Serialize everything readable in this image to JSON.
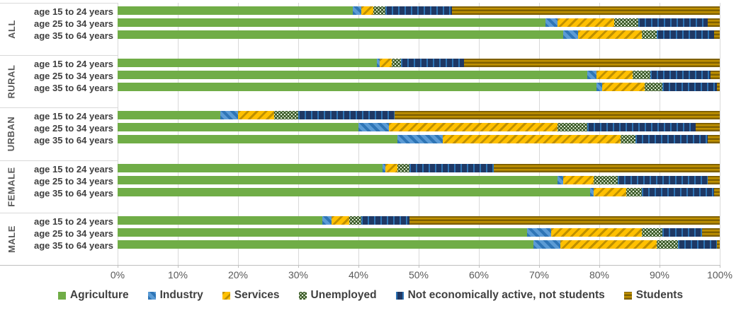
{
  "chart_data": {
    "type": "bar",
    "orientation": "horizontal",
    "stacked": true,
    "unit": "percent",
    "xlim": [
      0,
      100
    ],
    "x_ticks": [
      "0%",
      "10%",
      "20%",
      "30%",
      "40%",
      "50%",
      "60%",
      "70%",
      "80%",
      "90%",
      "100%"
    ],
    "grid": true,
    "legend_position": "bottom",
    "series": [
      {
        "name": "Agriculture",
        "fill": "#70AD47",
        "pattern": "solid"
      },
      {
        "name": "Industry",
        "fill": "#5B9BD5",
        "stripe": "#2E75B6",
        "pattern": "diagonal-down"
      },
      {
        "name": "Services",
        "fill": "#FFC000",
        "stripe": "#BF9000",
        "pattern": "diagonal-up"
      },
      {
        "name": "Unemployed",
        "fill": "#375623",
        "stripe": "#E2EFDA",
        "pattern": "dots"
      },
      {
        "name": "Not economically active, not students",
        "fill": "#1F3864",
        "stripe": "#2E75B6",
        "pattern": "vertical-stripes"
      },
      {
        "name": "Students",
        "fill": "#7F6000",
        "stripe": "#BF9000",
        "pattern": "horizontal-stripes"
      }
    ],
    "groups": [
      {
        "name": "ALL",
        "rows": [
          {
            "label": "age 15 to 24 years",
            "values": [
              39,
              1.5,
              2,
              2,
              11,
              44.5
            ]
          },
          {
            "label": "age 25 to 34 years",
            "values": [
              71,
              2,
              9.5,
              4,
              11.5,
              2
            ]
          },
          {
            "label": "age 35 to 64 years",
            "values": [
              74,
              2.5,
              10.5,
              2.5,
              9.5,
              1
            ]
          }
        ]
      },
      {
        "name": "RURAL",
        "rows": [
          {
            "label": "age 15 to 24 years",
            "values": [
              43,
              0.5,
              2,
              1.5,
              10.5,
              42.5
            ]
          },
          {
            "label": "age 25 to 34 years",
            "values": [
              78,
              1.5,
              6,
              3,
              10,
              1.5
            ]
          },
          {
            "label": "age 35 to 64 years",
            "values": [
              79.5,
              1,
              7,
              3,
              9,
              0.5
            ]
          }
        ]
      },
      {
        "name": "URBAN",
        "rows": [
          {
            "label": "age 15 to 24 years",
            "values": [
              17,
              3,
              6,
              4,
              16,
              54
            ]
          },
          {
            "label": "age 25 to 34 years",
            "values": [
              40,
              5,
              28,
              5,
              18,
              4
            ]
          },
          {
            "label": "age 35 to 64 years",
            "values": [
              46.5,
              7.5,
              29.5,
              2.5,
              12,
              2
            ]
          }
        ]
      },
      {
        "name": "FEMALE",
        "rows": [
          {
            "label": "age 15 to 24 years",
            "values": [
              44,
              0.5,
              2,
              2,
              14,
              37.5
            ]
          },
          {
            "label": "age 25 to 34 years",
            "values": [
              73,
              1,
              5,
              4,
              15,
              2
            ]
          },
          {
            "label": "age 35 to 64 years",
            "values": [
              78.5,
              0.5,
              5.5,
              2.5,
              12,
              1
            ]
          }
        ]
      },
      {
        "name": "MALE",
        "rows": [
          {
            "label": "age 15 to 24 years",
            "values": [
              34,
              1.5,
              3,
              2,
              8,
              51.5
            ]
          },
          {
            "label": "age 25 to 34 years",
            "values": [
              68,
              4,
              15,
              3.5,
              6.5,
              3
            ]
          },
          {
            "label": "age 35 to 64 years",
            "values": [
              69,
              4.5,
              16,
              3.5,
              6.5,
              0.5
            ]
          }
        ]
      }
    ]
  },
  "legend": {
    "items": [
      "Agriculture",
      "Industry",
      "Services",
      "Unemployed",
      "Not economically active, not students",
      "Students"
    ]
  }
}
